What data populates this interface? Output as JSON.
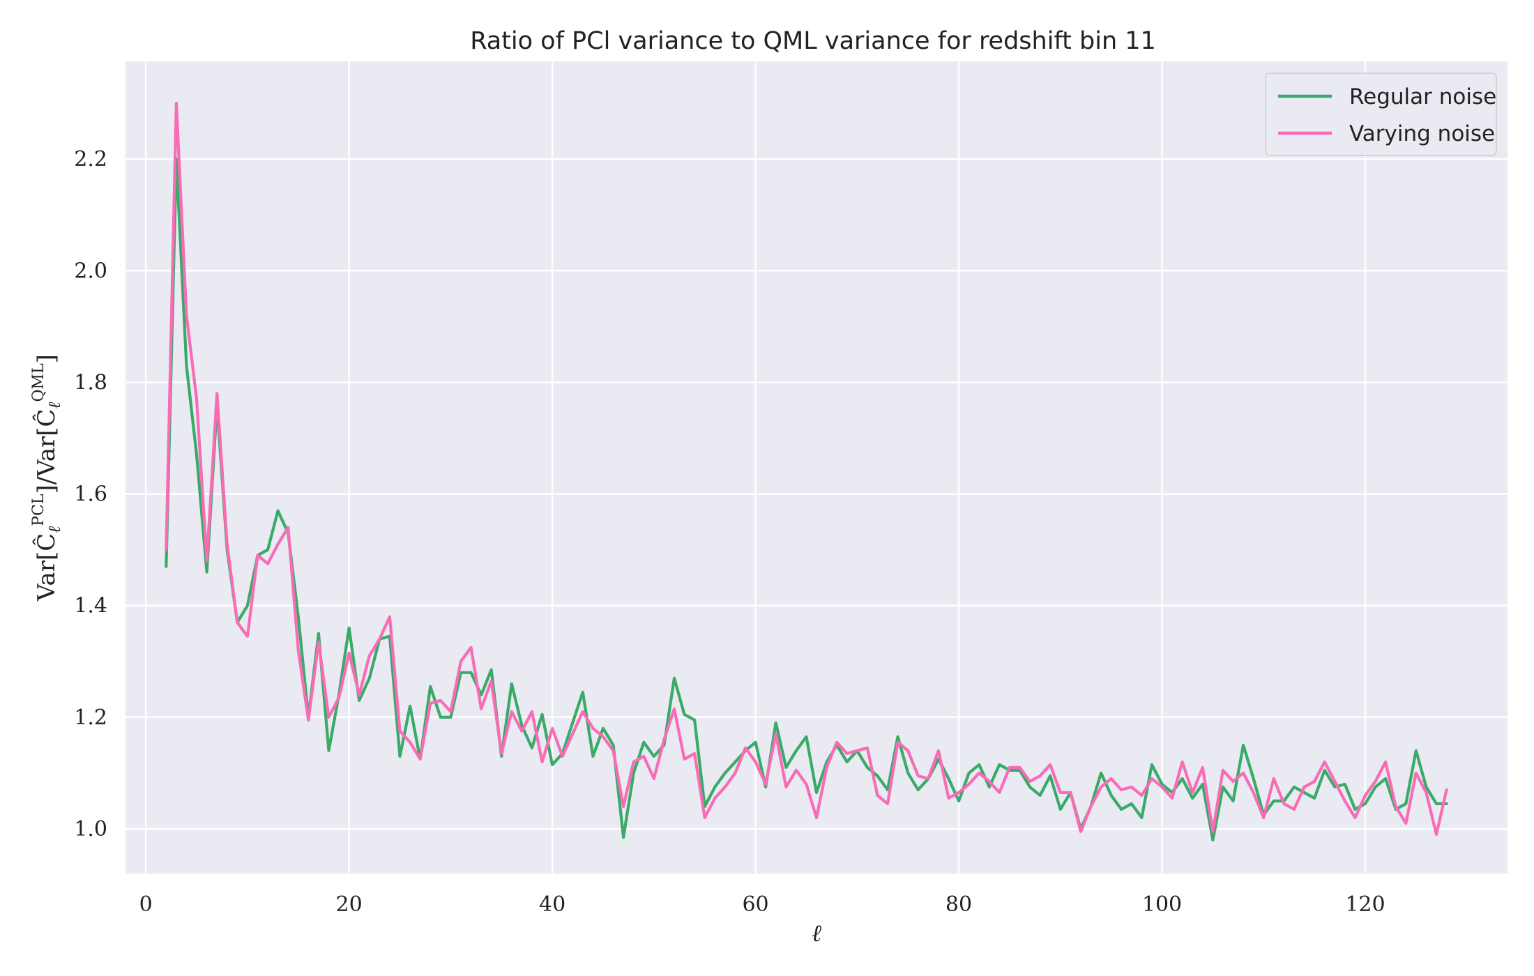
{
  "chart_data": {
    "type": "line",
    "title": "Ratio of PCl variance to QML variance for redshift bin 11",
    "xlabel": "ℓ",
    "ylabel": "Var[Ĉℓ^PCL]/Var[Ĉℓ^QML]",
    "ylabel_parts": {
      "base": "Var[Ĉ",
      "sub": "ℓ",
      "sup": "PCL",
      "mid": "]/Var[Ĉ",
      "sub2": "ℓ",
      "sup2": "QML",
      "end": "]"
    },
    "xlim": [
      -2,
      134
    ],
    "ylim": [
      0.92,
      2.375
    ],
    "xticks": [
      0,
      20,
      40,
      60,
      80,
      100,
      120
    ],
    "yticks": [
      1.0,
      1.2,
      1.4,
      1.6,
      1.8,
      2.0,
      2.2
    ],
    "ytick_labels": [
      "1.0",
      "1.2",
      "1.4",
      "1.6",
      "1.8",
      "2.0",
      "2.2"
    ],
    "grid": true,
    "legend_position": "top-right",
    "x_start": 2,
    "series": [
      {
        "name": "Regular noise",
        "color": "#3aaa68",
        "values": [
          1.47,
          2.2,
          1.83,
          1.67,
          1.46,
          1.76,
          1.5,
          1.37,
          1.4,
          1.49,
          1.5,
          1.57,
          1.53,
          1.38,
          1.2,
          1.35,
          1.14,
          1.24,
          1.36,
          1.23,
          1.27,
          1.34,
          1.345,
          1.13,
          1.22,
          1.125,
          1.255,
          1.2,
          1.2,
          1.28,
          1.28,
          1.24,
          1.285,
          1.13,
          1.26,
          1.185,
          1.145,
          1.205,
          1.115,
          1.135,
          1.19,
          1.245,
          1.13,
          1.18,
          1.15,
          0.985,
          1.1,
          1.155,
          1.13,
          1.15,
          1.27,
          1.205,
          1.195,
          1.04,
          1.075,
          1.1,
          1.12,
          1.14,
          1.155,
          1.075,
          1.19,
          1.11,
          1.14,
          1.165,
          1.065,
          1.12,
          1.15,
          1.12,
          1.14,
          1.11,
          1.095,
          1.07,
          1.165,
          1.1,
          1.07,
          1.09,
          1.125,
          1.09,
          1.05,
          1.1,
          1.115,
          1.075,
          1.115,
          1.105,
          1.105,
          1.075,
          1.06,
          1.095,
          1.035,
          1.065,
          1.0,
          1.04,
          1.1,
          1.06,
          1.035,
          1.045,
          1.02,
          1.115,
          1.08,
          1.065,
          1.09,
          1.055,
          1.08,
          0.98,
          1.075,
          1.05,
          1.15,
          1.09,
          1.025,
          1.05,
          1.05,
          1.075,
          1.065,
          1.055,
          1.105,
          1.075,
          1.08,
          1.035,
          1.045,
          1.075,
          1.09,
          1.035,
          1.045,
          1.14,
          1.075,
          1.045,
          1.045
        ]
      },
      {
        "name": "Varying noise",
        "color": "#f86cb6",
        "values": [
          1.5,
          2.3,
          1.92,
          1.77,
          1.48,
          1.78,
          1.51,
          1.37,
          1.345,
          1.49,
          1.475,
          1.51,
          1.54,
          1.32,
          1.195,
          1.335,
          1.2,
          1.235,
          1.315,
          1.24,
          1.31,
          1.34,
          1.38,
          1.175,
          1.155,
          1.125,
          1.225,
          1.23,
          1.21,
          1.3,
          1.325,
          1.215,
          1.265,
          1.135,
          1.21,
          1.175,
          1.21,
          1.12,
          1.18,
          1.13,
          1.17,
          1.21,
          1.18,
          1.165,
          1.14,
          1.04,
          1.12,
          1.13,
          1.09,
          1.16,
          1.215,
          1.125,
          1.135,
          1.02,
          1.055,
          1.075,
          1.1,
          1.145,
          1.12,
          1.08,
          1.17,
          1.075,
          1.105,
          1.08,
          1.02,
          1.11,
          1.155,
          1.135,
          1.14,
          1.145,
          1.06,
          1.045,
          1.155,
          1.14,
          1.095,
          1.09,
          1.14,
          1.055,
          1.065,
          1.08,
          1.1,
          1.085,
          1.065,
          1.11,
          1.11,
          1.085,
          1.095,
          1.115,
          1.065,
          1.065,
          0.995,
          1.04,
          1.075,
          1.09,
          1.07,
          1.075,
          1.06,
          1.09,
          1.075,
          1.055,
          1.12,
          1.065,
          1.11,
          0.995,
          1.105,
          1.085,
          1.1,
          1.065,
          1.02,
          1.09,
          1.045,
          1.035,
          1.075,
          1.085,
          1.12,
          1.085,
          1.05,
          1.02,
          1.06,
          1.085,
          1.12,
          1.04,
          1.01,
          1.1,
          1.065,
          0.99,
          1.07
        ]
      }
    ]
  }
}
